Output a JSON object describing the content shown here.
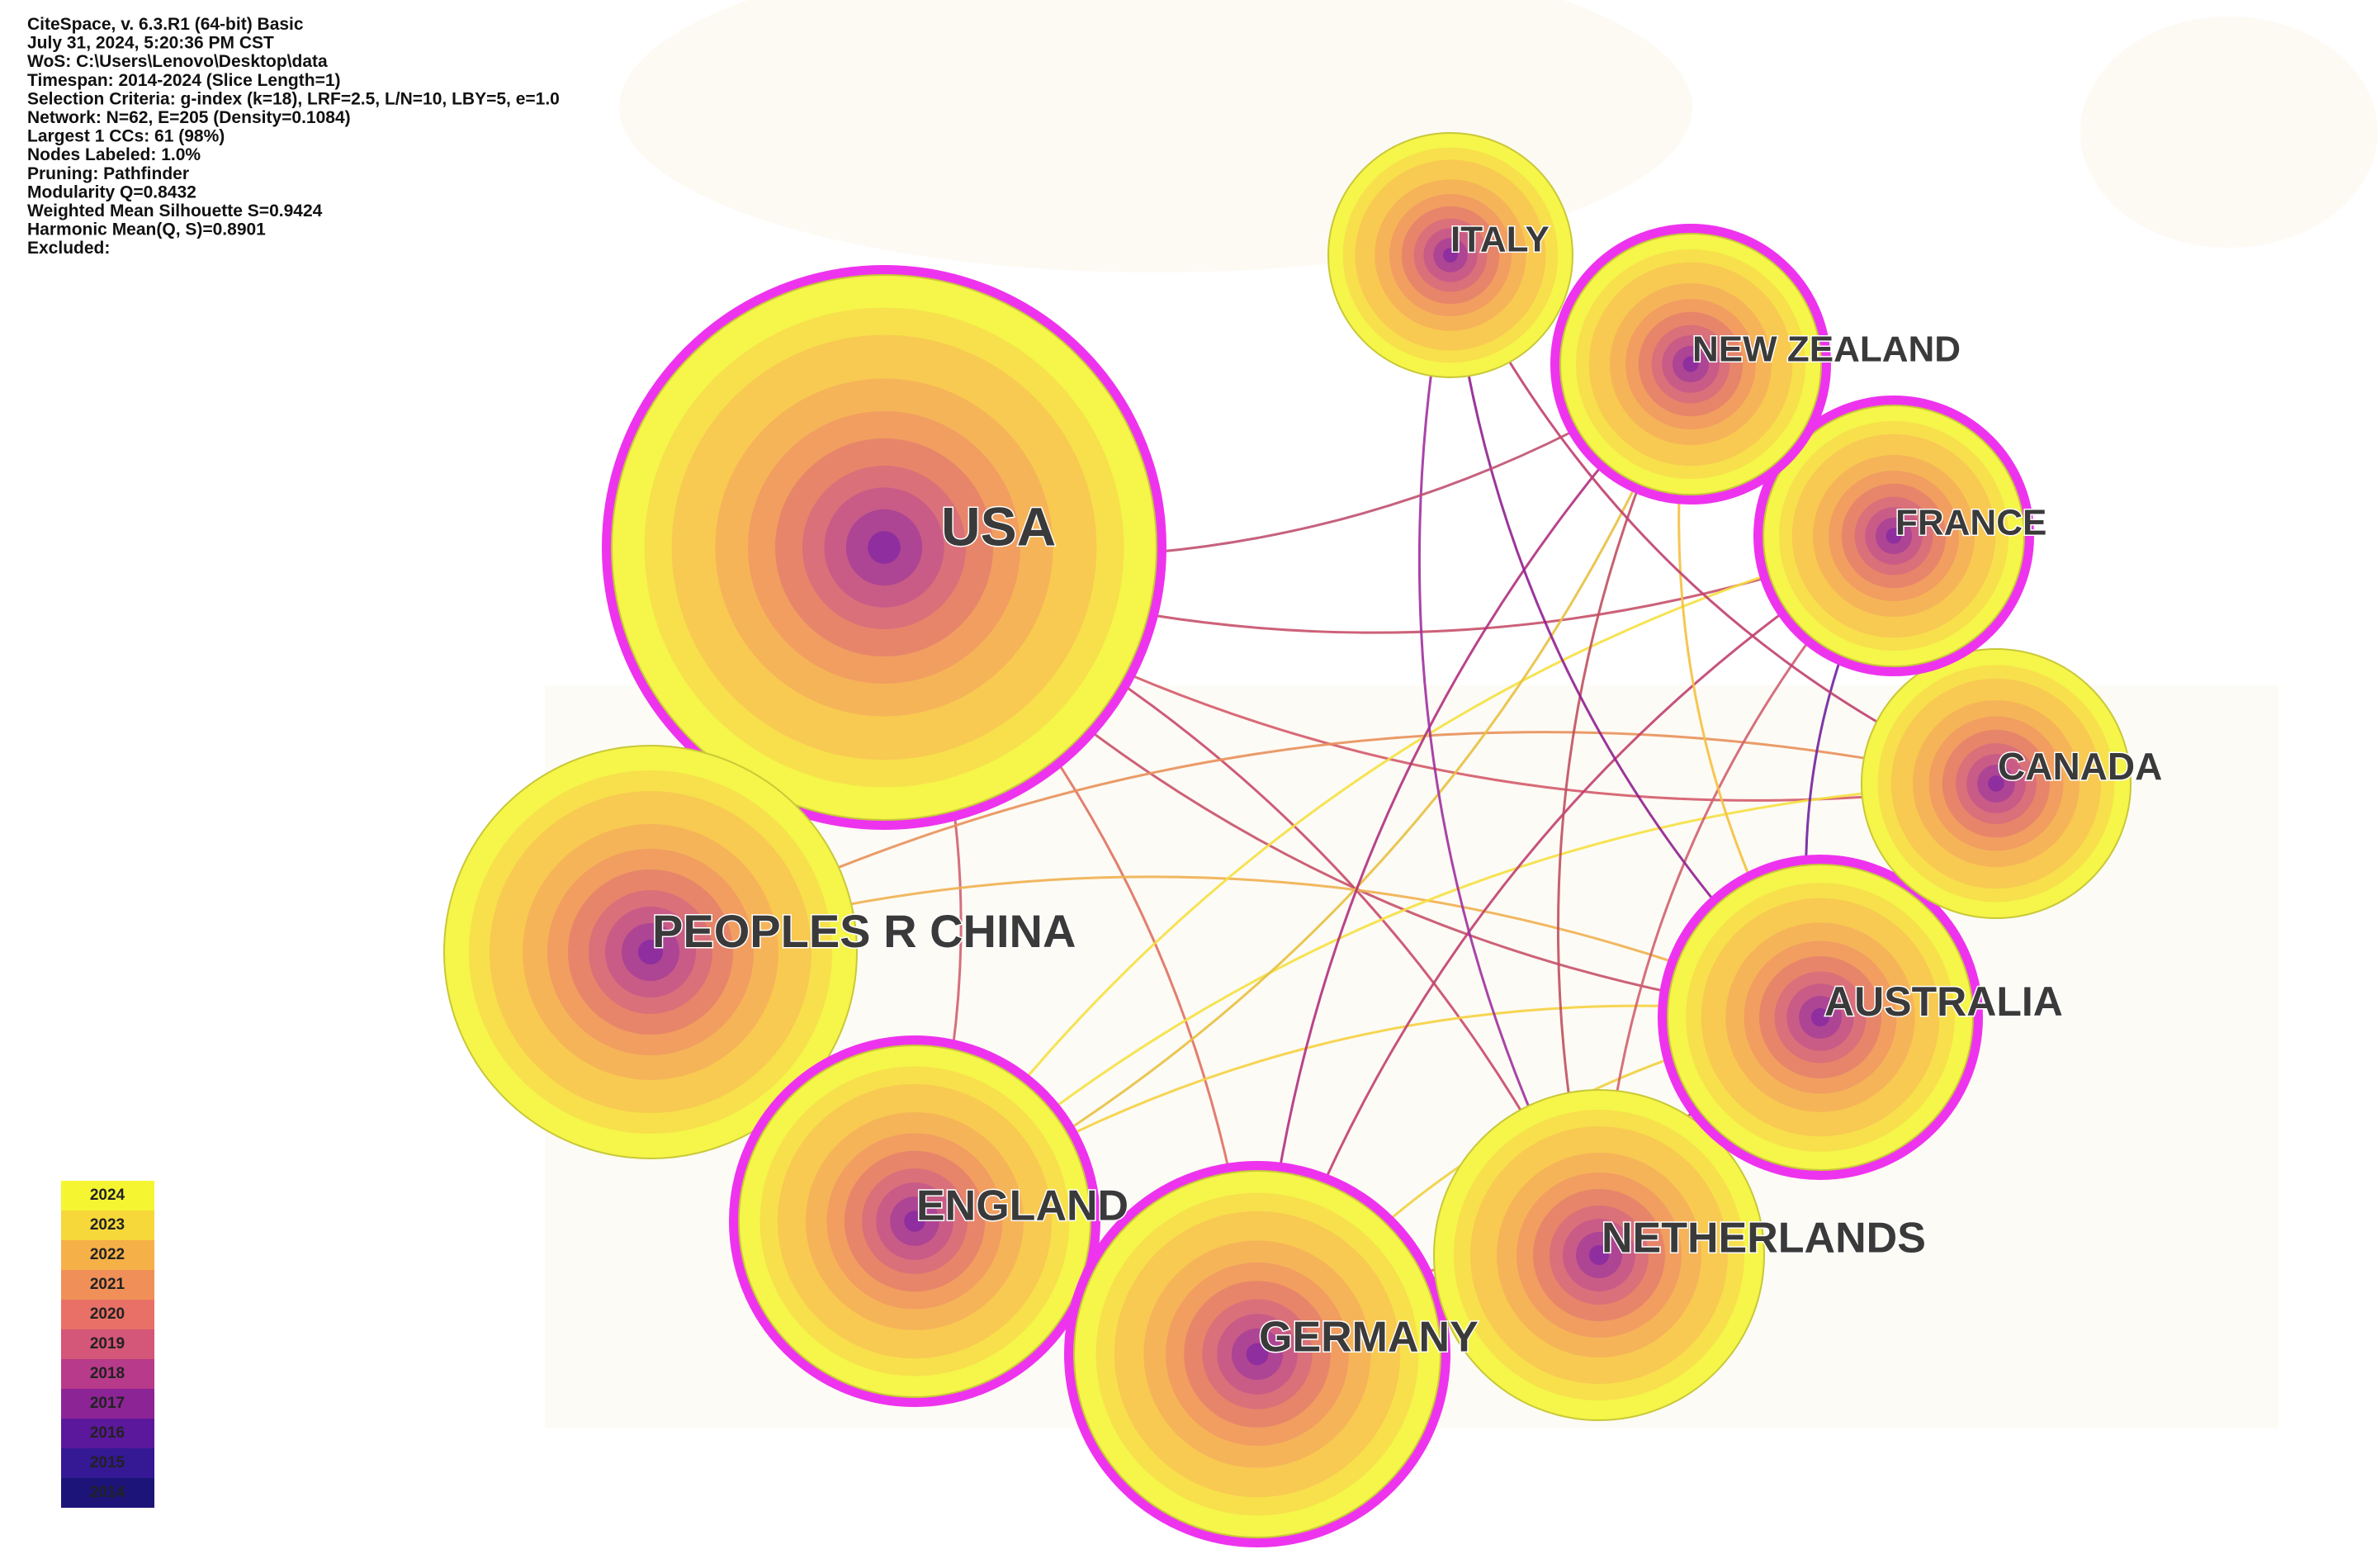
{
  "header": {
    "lines": [
      "CiteSpace, v. 6.3.R1 (64-bit) Basic",
      "July 31, 2024, 5:20:36 PM CST",
      "WoS: C:\\Users\\Lenovo\\Desktop\\data",
      "Timespan: 2014-2024 (Slice Length=1)",
      "Selection Criteria: g-index (k=18), LRF=2.5, L/N=10, LBY=5, e=1.0",
      "Network: N=62, E=205 (Density=0.1084)",
      "Largest 1 CCs: 61 (98%)",
      "Nodes Labeled: 1.0%",
      "Pruning: Pathfinder",
      "Modularity Q=0.8432",
      "Weighted Mean Silhouette S=0.9424",
      "Harmonic Mean(Q, S)=0.8901",
      "Excluded:"
    ]
  },
  "nodes": [
    {
      "label": "USA"
    },
    {
      "label": "PEOPLES R CHINA"
    },
    {
      "label": "ENGLAND"
    },
    {
      "label": "GERMANY"
    },
    {
      "label": "NETHERLANDS"
    },
    {
      "label": "AUSTRALIA"
    },
    {
      "label": "CANADA"
    },
    {
      "label": "FRANCE"
    },
    {
      "label": "NEW ZEALAND"
    },
    {
      "label": "ITALY"
    }
  ],
  "legend": {
    "years": [
      "2024",
      "2023",
      "2022",
      "2021",
      "2020",
      "2019",
      "2018",
      "2017",
      "2016",
      "2015",
      "2014"
    ]
  }
}
